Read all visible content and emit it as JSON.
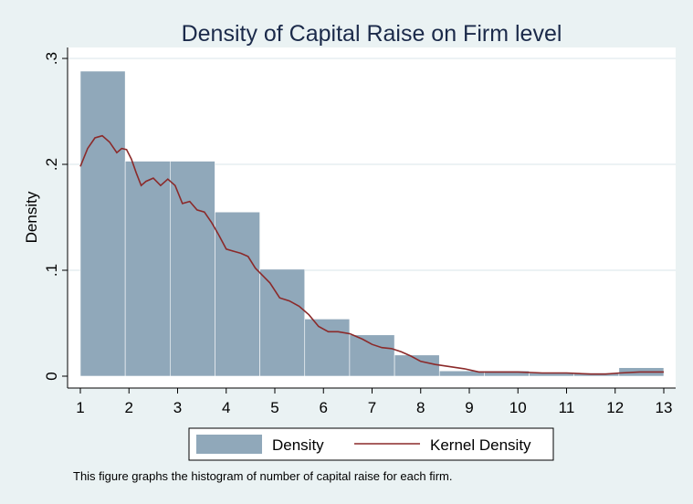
{
  "chart_data": {
    "type": "bar",
    "title": "Density of Capital Raise on Firm level",
    "xlabel": "",
    "ylabel": "Density",
    "xlim": [
      1,
      13
    ],
    "ylim": [
      0,
      0.3
    ],
    "x_ticks": [
      "1",
      "2",
      "3",
      "4",
      "5",
      "6",
      "7",
      "8",
      "9",
      "10",
      "11",
      "12",
      "13"
    ],
    "y_ticks": [
      {
        "value": 0,
        "label": "0"
      },
      {
        "value": 0.1,
        "label": ".1"
      },
      {
        "value": 0.2,
        "label": ".2"
      },
      {
        "value": 0.3,
        "label": ".3"
      }
    ],
    "grid": true,
    "legend_position": "bottom",
    "bars": [
      {
        "x0": 1.0,
        "x1": 1.923,
        "value": 0.288
      },
      {
        "x0": 1.923,
        "x1": 2.846,
        "value": 0.203
      },
      {
        "x0": 2.846,
        "x1": 3.769,
        "value": 0.203
      },
      {
        "x0": 3.769,
        "x1": 4.692,
        "value": 0.155
      },
      {
        "x0": 4.692,
        "x1": 5.615,
        "value": 0.101
      },
      {
        "x0": 5.615,
        "x1": 6.538,
        "value": 0.054
      },
      {
        "x0": 6.538,
        "x1": 7.462,
        "value": 0.039
      },
      {
        "x0": 7.462,
        "x1": 8.385,
        "value": 0.02
      },
      {
        "x0": 8.385,
        "x1": 9.308,
        "value": 0.005
      },
      {
        "x0": 9.308,
        "x1": 10.231,
        "value": 0.005
      },
      {
        "x0": 10.231,
        "x1": 11.154,
        "value": 0.003
      },
      {
        "x0": 11.154,
        "x1": 12.077,
        "value": 0.003
      },
      {
        "x0": 12.077,
        "x1": 13.0,
        "value": 0.008
      }
    ],
    "series": [
      {
        "name": "Density",
        "type": "bar"
      },
      {
        "name": "Kernel Density",
        "type": "line",
        "x": [
          1.0,
          1.15,
          1.3,
          1.45,
          1.6,
          1.75,
          1.85,
          1.95,
          2.05,
          2.15,
          2.25,
          2.35,
          2.5,
          2.65,
          2.8,
          2.95,
          3.1,
          3.25,
          3.4,
          3.55,
          3.7,
          3.85,
          4.0,
          4.15,
          4.3,
          4.45,
          4.6,
          4.75,
          4.9,
          5.1,
          5.3,
          5.5,
          5.7,
          5.9,
          6.1,
          6.3,
          6.55,
          6.8,
          7.0,
          7.2,
          7.4,
          7.6,
          7.8,
          8.0,
          8.3,
          8.6,
          8.9,
          9.2,
          9.5,
          10.0,
          10.5,
          11.0,
          11.5,
          11.8,
          12.1,
          12.5,
          13.0
        ],
        "values": [
          0.198,
          0.215,
          0.225,
          0.227,
          0.221,
          0.211,
          0.215,
          0.214,
          0.205,
          0.192,
          0.18,
          0.184,
          0.187,
          0.18,
          0.186,
          0.18,
          0.163,
          0.165,
          0.157,
          0.155,
          0.145,
          0.133,
          0.12,
          0.118,
          0.116,
          0.113,
          0.102,
          0.095,
          0.088,
          0.074,
          0.071,
          0.066,
          0.058,
          0.047,
          0.042,
          0.042,
          0.04,
          0.035,
          0.03,
          0.027,
          0.026,
          0.023,
          0.019,
          0.014,
          0.011,
          0.009,
          0.007,
          0.004,
          0.004,
          0.004,
          0.003,
          0.003,
          0.002,
          0.002,
          0.003,
          0.004,
          0.004
        ]
      }
    ],
    "colors": {
      "background": "#eaf2f3",
      "plot_area": "#ffffff",
      "bar_fill": "#90a8ba",
      "line": "#8b2a2a",
      "title": "#1b2a4a",
      "grid": "#e6eef0"
    },
    "note": "This figure graphs the histogram of number of capital raise for each firm."
  }
}
